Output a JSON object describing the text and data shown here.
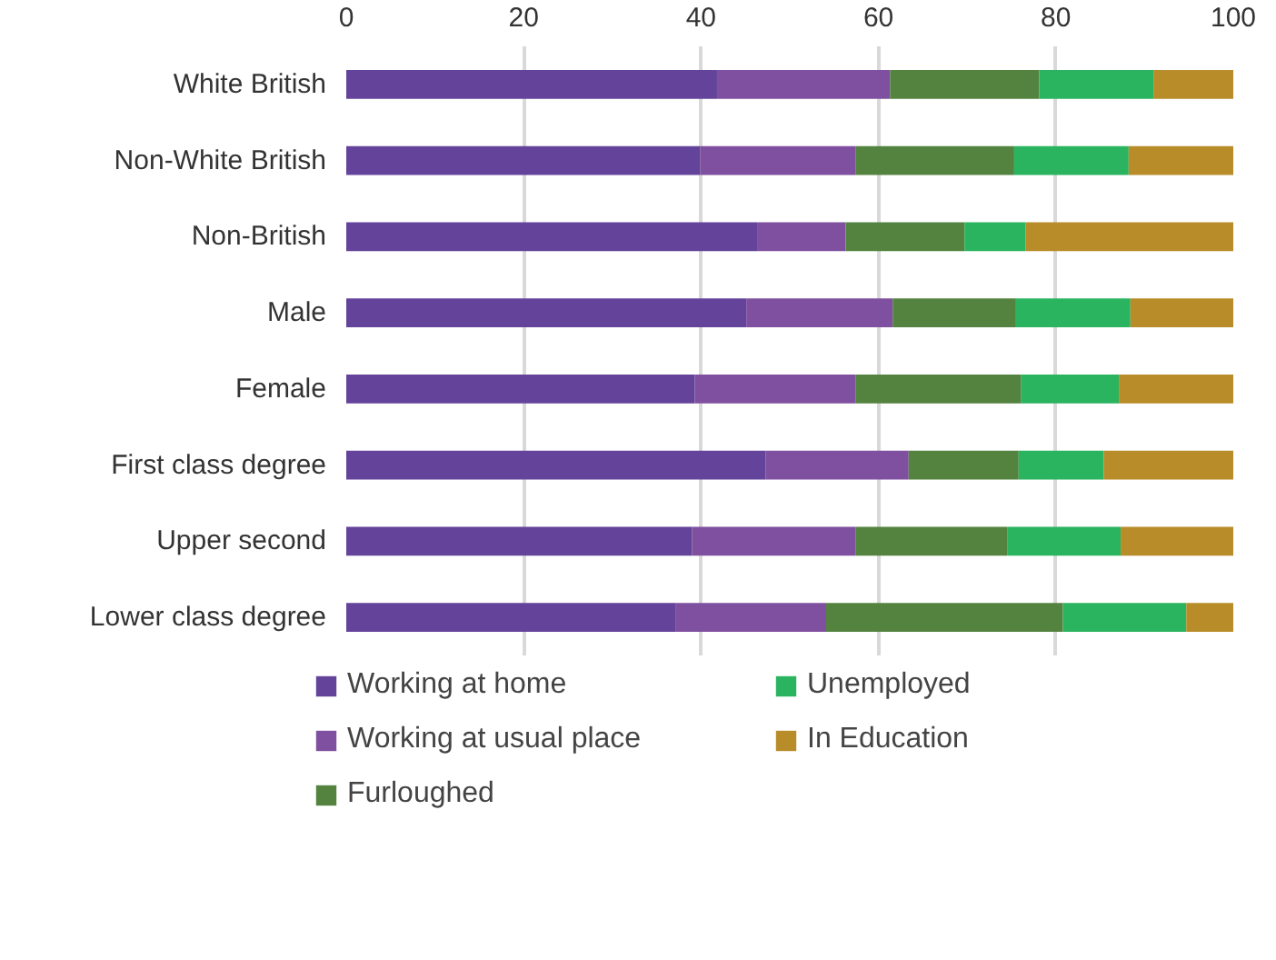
{
  "chart_data": {
    "type": "bar",
    "orientation": "horizontal",
    "stacked": true,
    "categories": [
      "White British",
      "Non-White British",
      "Non-British",
      "Male",
      "Female",
      "First class degree",
      "Upper second",
      "Lower class degree"
    ],
    "series": [
      {
        "name": "Working at home",
        "color": "#64439a",
        "values": [
          41.8,
          39.9,
          46.4,
          45.1,
          39.3,
          47.3,
          39.0,
          37.1
        ]
      },
      {
        "name": "Working at usual place",
        "color": "#7f509f",
        "values": [
          19.5,
          17.5,
          9.9,
          16.5,
          18.1,
          16.1,
          18.4,
          17.0
        ]
      },
      {
        "name": "Furloughed",
        "color": "#548340",
        "values": [
          16.8,
          17.9,
          13.4,
          13.9,
          18.7,
          12.4,
          17.1,
          26.7
        ]
      },
      {
        "name": "Unemployed",
        "color": "#2bb45f",
        "values": [
          12.9,
          12.9,
          6.9,
          12.9,
          11.0,
          9.6,
          12.8,
          13.9
        ]
      },
      {
        "name": "In Education",
        "color": "#b88c29",
        "values": [
          9.0,
          11.8,
          23.4,
          11.6,
          12.9,
          14.6,
          12.7,
          5.3
        ]
      }
    ],
    "xlim": [
      0,
      100
    ],
    "xticks": [
      0,
      20,
      40,
      60,
      80,
      100
    ],
    "grid": "x",
    "legend": "bottom"
  }
}
